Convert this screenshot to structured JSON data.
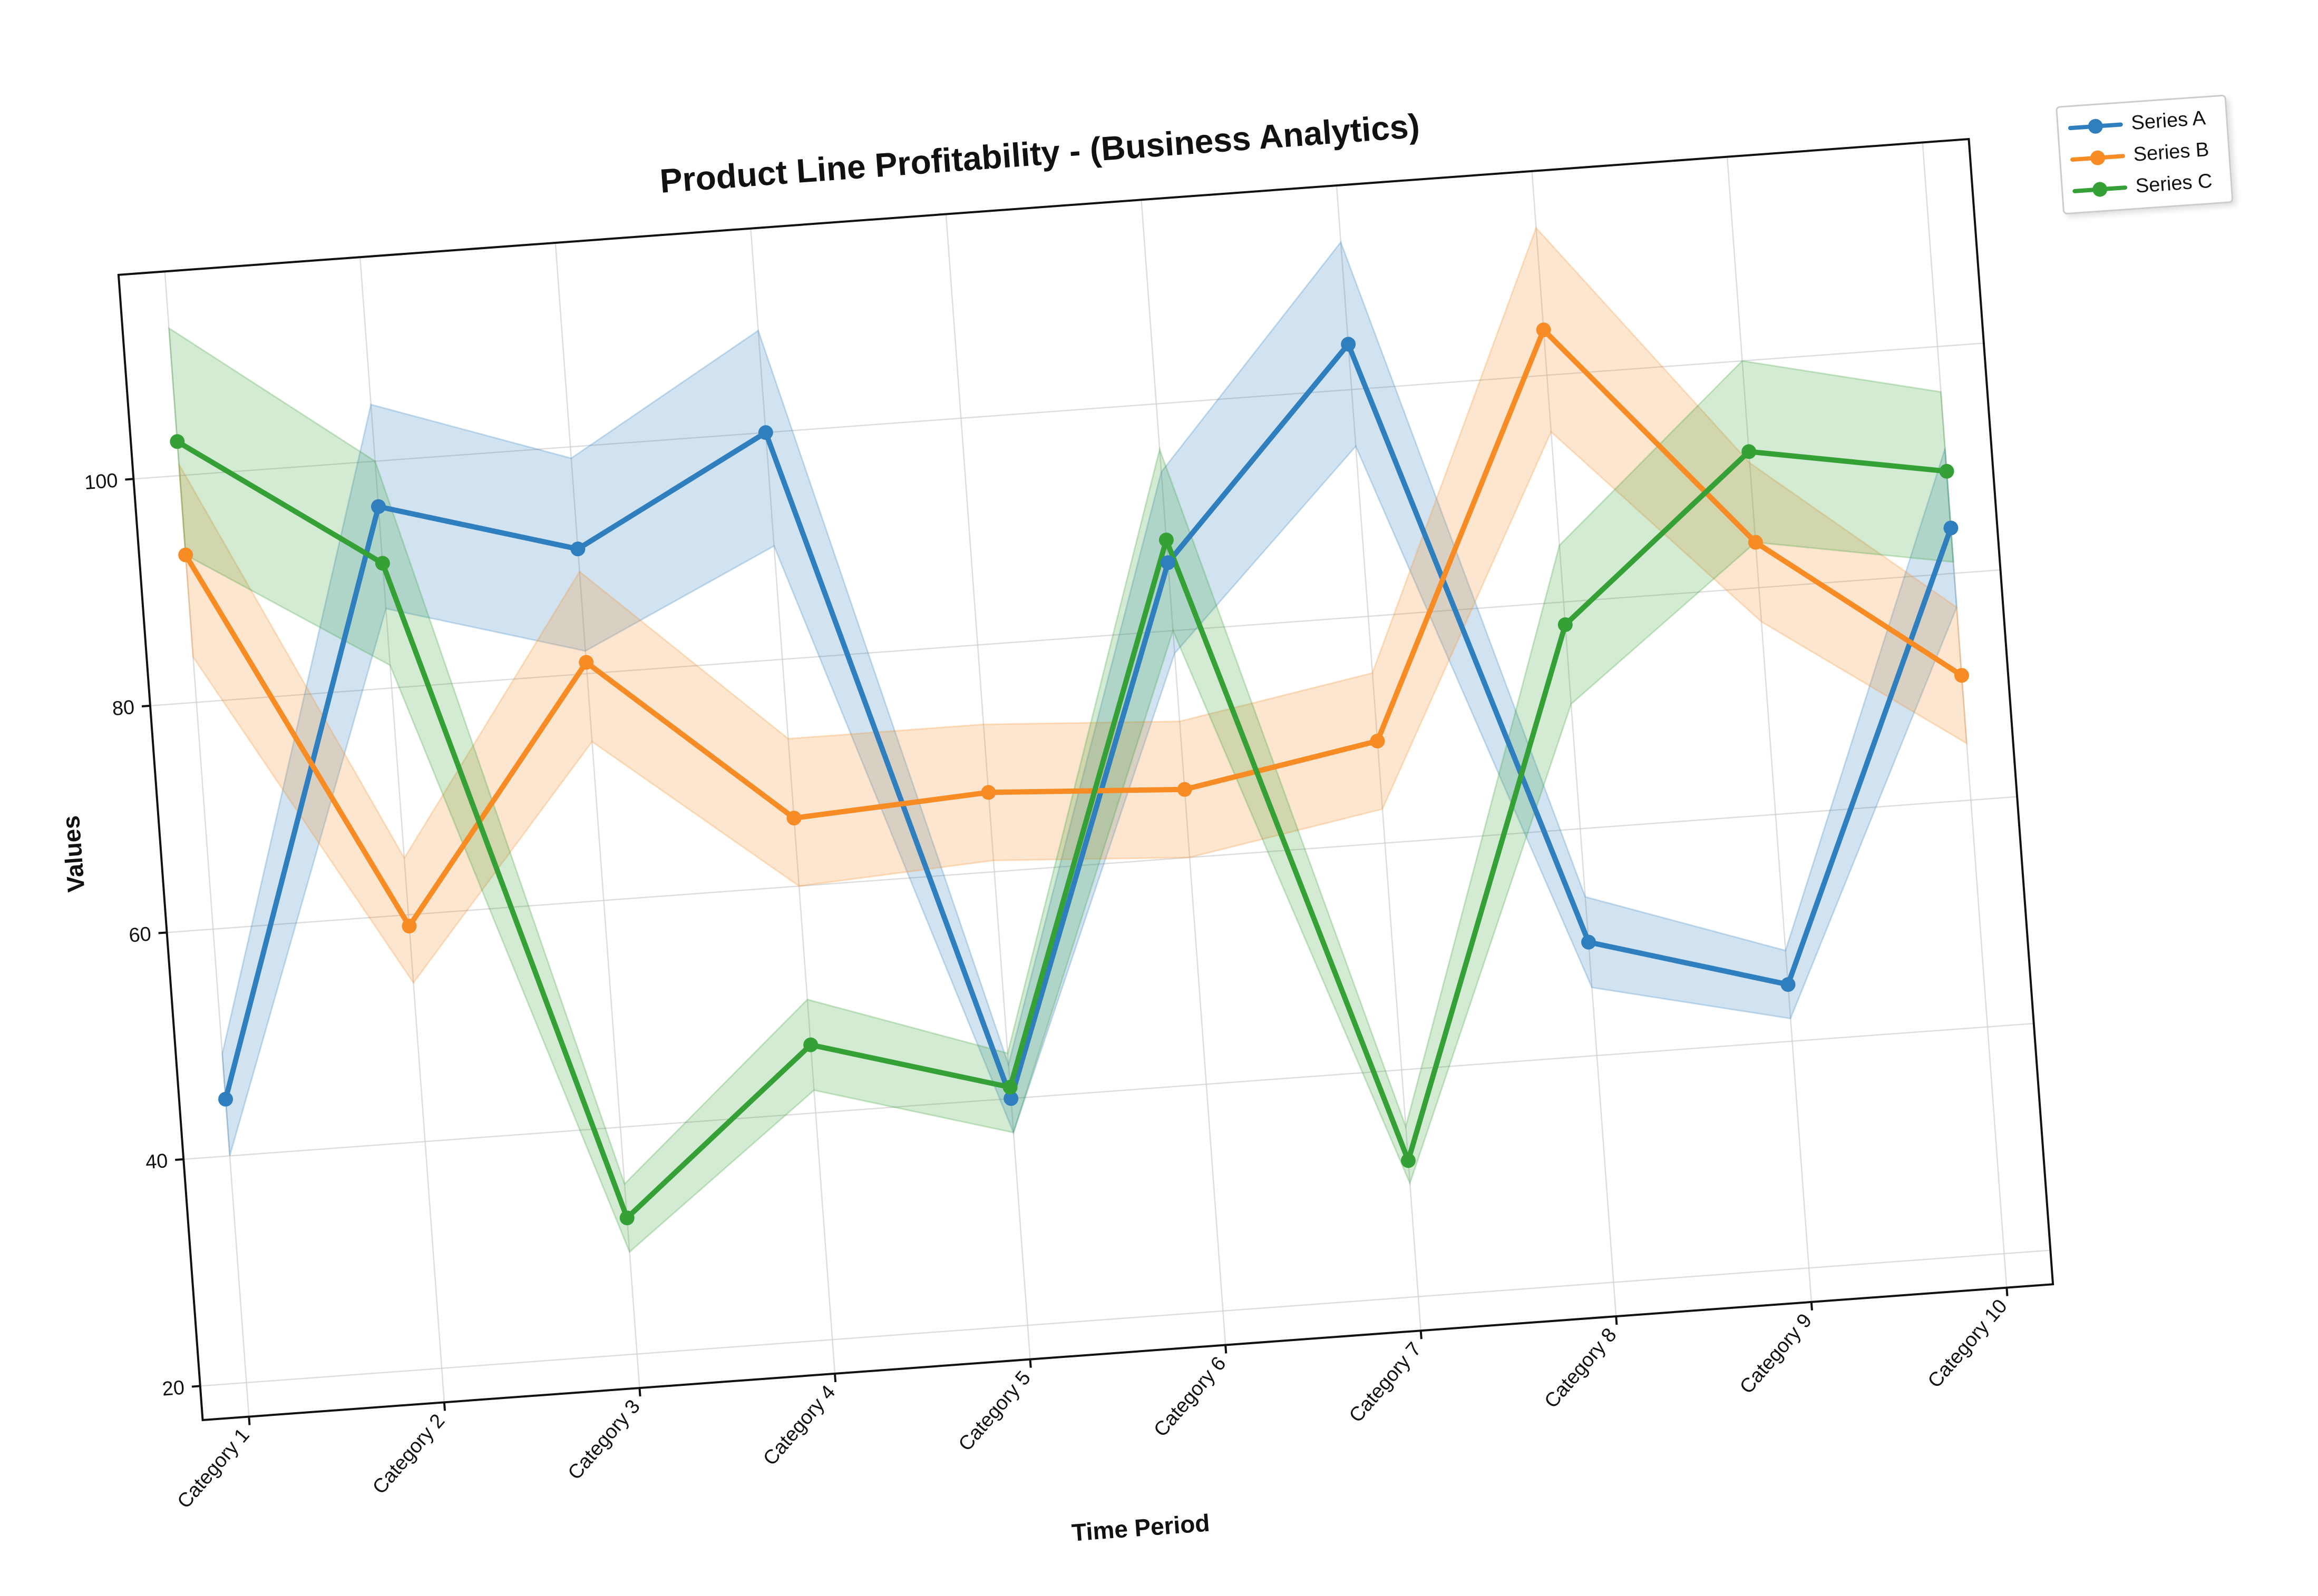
{
  "chart_data": {
    "type": "line",
    "title": "Product Line Profitability - (Business Analytics)",
    "xlabel": "Time Period",
    "ylabel": "Values",
    "categories": [
      "Category 1",
      "Category 2",
      "Category 3",
      "Category 4",
      "Category 5",
      "Category 6",
      "Category 7",
      "Category 8",
      "Category 9",
      "Category 10"
    ],
    "ylim": [
      17,
      118
    ],
    "yticks": [
      20,
      40,
      60,
      80,
      100
    ],
    "grid": true,
    "legend_position": "top-right",
    "series": [
      {
        "name": "Series A",
        "color": "#2f7fbf",
        "values": [
          45,
          96,
          91,
          100,
          40,
          86,
          104,
          50,
          45,
          84
        ],
        "lower": [
          40,
          87,
          82,
          90,
          37,
          78,
          95,
          46,
          42,
          77
        ],
        "upper": [
          49,
          105,
          99,
          109,
          43,
          94,
          113,
          54,
          48,
          91
        ]
      },
      {
        "name": "Series B",
        "color": "#f78b24",
        "values": [
          93,
          59,
          81,
          66,
          67,
          66,
          69,
          104,
          84,
          71
        ],
        "lower": [
          84,
          54,
          74,
          60,
          61,
          60,
          63,
          95,
          77,
          65
        ],
        "upper": [
          101,
          65,
          89,
          73,
          73,
          72,
          75,
          113,
          91,
          77
        ]
      },
      {
        "name": "Series C",
        "color": "#35a035",
        "values": [
          103,
          91,
          32,
          46,
          41,
          88,
          32,
          78,
          92,
          89
        ],
        "lower": [
          93,
          82,
          29,
          42,
          37,
          80,
          30,
          71,
          84,
          81
        ],
        "upper": [
          113,
          100,
          35,
          50,
          44,
          96,
          35,
          85,
          100,
          96
        ]
      }
    ]
  },
  "legend": {
    "items": [
      {
        "label": "Series A",
        "color": "#2f7fbf"
      },
      {
        "label": "Series B",
        "color": "#f78b24"
      },
      {
        "label": "Series C",
        "color": "#35a035"
      }
    ]
  }
}
